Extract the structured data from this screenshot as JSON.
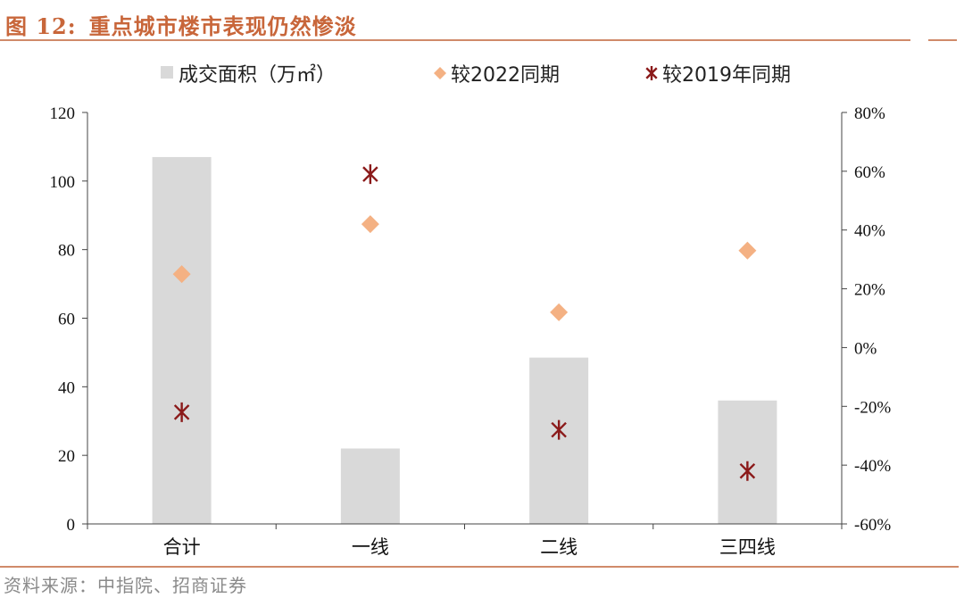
{
  "figure": {
    "label": "图 12:",
    "title": "重点城市楼市表现仍然惨淡",
    "source": "资料来源：中指院、招商证券"
  },
  "chart_data": {
    "type": "bar",
    "categories": [
      "合计",
      "一线",
      "二线",
      "三四线"
    ],
    "series": [
      {
        "name": "成交面积（万㎡）",
        "kind": "bar",
        "axis": "left",
        "color": "#d9d9d9",
        "values": [
          107,
          22,
          48.5,
          36
        ]
      },
      {
        "name": "较2022同期",
        "kind": "scatter",
        "marker": "diamond",
        "axis": "right",
        "color": "#f4b183",
        "values": [
          25,
          42,
          12,
          33
        ]
      },
      {
        "name": "较2019年同期",
        "kind": "scatter",
        "marker": "asterisk",
        "axis": "right",
        "color": "#8b1a1a",
        "values": [
          -22,
          59,
          -28,
          -42
        ]
      }
    ],
    "y_left": {
      "min": 0,
      "max": 120,
      "ticks": [
        "0",
        "20",
        "40",
        "60",
        "80",
        "100",
        "120"
      ]
    },
    "y_right": {
      "min": -60,
      "max": 80,
      "ticks": [
        "-60%",
        "-40%",
        "-20%",
        "0%",
        "20%",
        "40%",
        "60%",
        "80%"
      ]
    },
    "legend": "top",
    "grid": false
  }
}
